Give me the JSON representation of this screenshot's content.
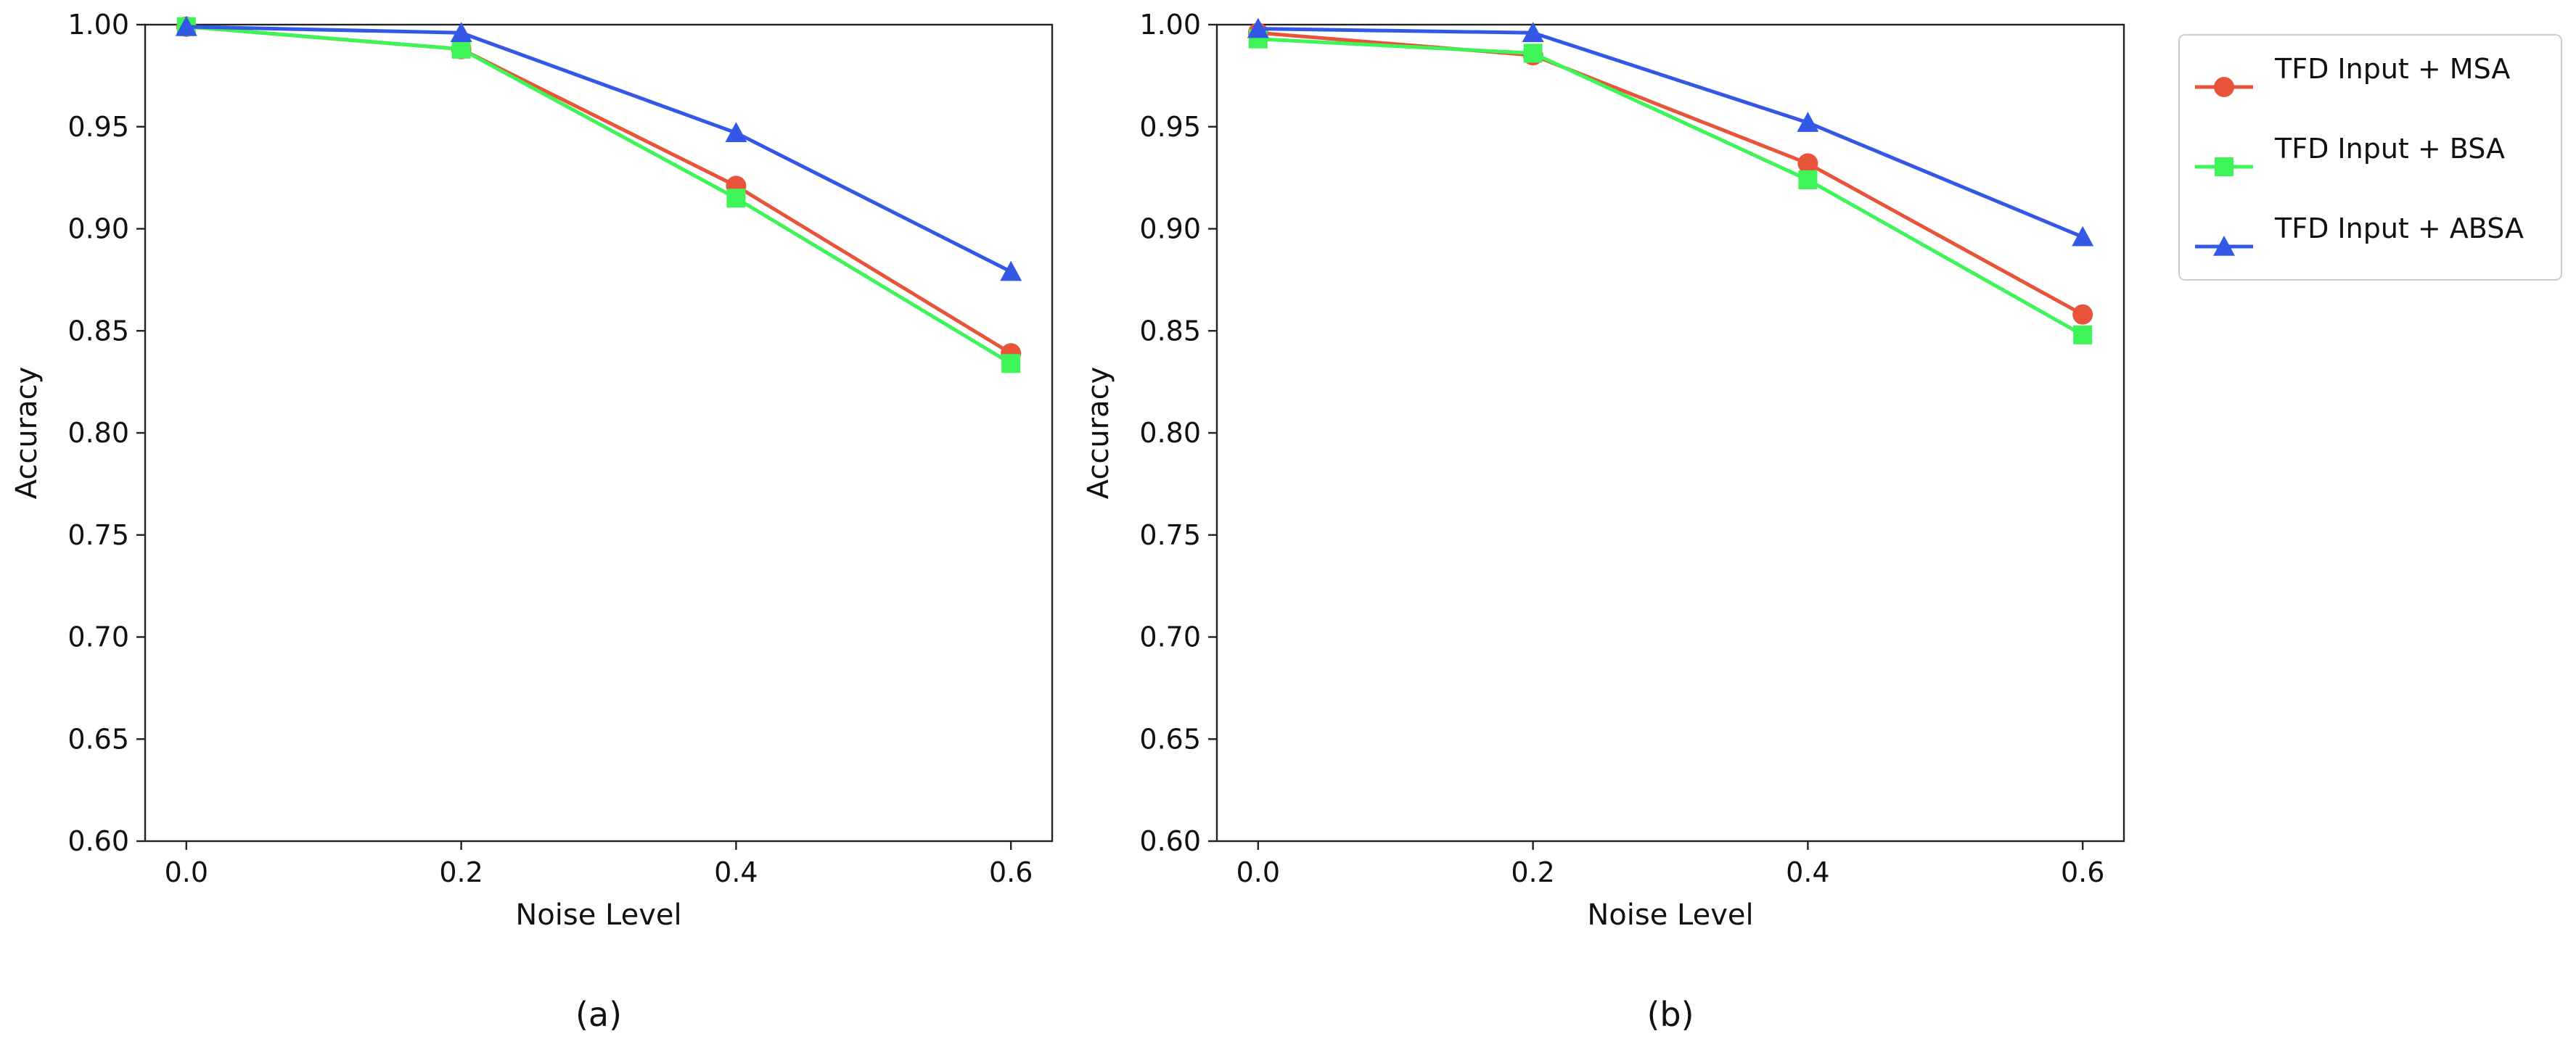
{
  "chart_data": [
    {
      "type": "line",
      "caption": "(a)",
      "xlabel": "Noise Level",
      "ylabel": "Accuracy",
      "x": [
        0.0,
        0.2,
        0.4,
        0.6
      ],
      "x_tick_labels": [
        "0.0",
        "0.2",
        "0.4",
        "0.6"
      ],
      "y_ticks": [
        0.6,
        0.65,
        0.7,
        0.75,
        0.8,
        0.85,
        0.9,
        0.95,
        1.0
      ],
      "y_tick_labels": [
        "0.60",
        "0.65",
        "0.70",
        "0.75",
        "0.80",
        "0.85",
        "0.90",
        "0.95",
        "1.00"
      ],
      "xlim": [
        -0.03,
        0.63
      ],
      "ylim": [
        0.6,
        1.0
      ],
      "series": [
        {
          "name": "TFD Input + MSA",
          "values": [
            0.999,
            0.988,
            0.921,
            0.839
          ],
          "color": "#e8543a",
          "marker": "circle"
        },
        {
          "name": "TFD Input + BSA",
          "values": [
            0.999,
            0.988,
            0.915,
            0.834
          ],
          "color": "#3df556",
          "marker": "square"
        },
        {
          "name": "TFD Input + ABSA",
          "values": [
            0.999,
            0.996,
            0.947,
            0.879
          ],
          "color": "#3458e6",
          "marker": "triangle"
        }
      ]
    },
    {
      "type": "line",
      "caption": "(b)",
      "xlabel": "Noise Level",
      "ylabel": "Accuracy",
      "x": [
        0.0,
        0.2,
        0.4,
        0.6
      ],
      "x_tick_labels": [
        "0.0",
        "0.2",
        "0.4",
        "0.6"
      ],
      "y_ticks": [
        0.6,
        0.65,
        0.7,
        0.75,
        0.8,
        0.85,
        0.9,
        0.95,
        1.0
      ],
      "y_tick_labels": [
        "0.60",
        "0.65",
        "0.70",
        "0.75",
        "0.80",
        "0.85",
        "0.90",
        "0.95",
        "1.00"
      ],
      "xlim": [
        -0.03,
        0.63
      ],
      "ylim": [
        0.6,
        1.0
      ],
      "series": [
        {
          "name": "TFD Input + MSA",
          "values": [
            0.996,
            0.985,
            0.932,
            0.858
          ],
          "color": "#e8543a",
          "marker": "circle"
        },
        {
          "name": "TFD Input + BSA",
          "values": [
            0.993,
            0.986,
            0.924,
            0.848
          ],
          "color": "#3df556",
          "marker": "square"
        },
        {
          "name": "TFD Input + ABSA",
          "values": [
            0.998,
            0.996,
            0.952,
            0.896
          ],
          "color": "#3458e6",
          "marker": "triangle"
        }
      ]
    }
  ],
  "legend": {
    "position": "right",
    "entries": [
      {
        "label": "TFD Input + MSA",
        "color": "#e8543a",
        "marker": "circle"
      },
      {
        "label": "TFD Input + BSA",
        "color": "#3df556",
        "marker": "square"
      },
      {
        "label": "TFD Input + ABSA",
        "color": "#3458e6",
        "marker": "triangle"
      }
    ]
  }
}
